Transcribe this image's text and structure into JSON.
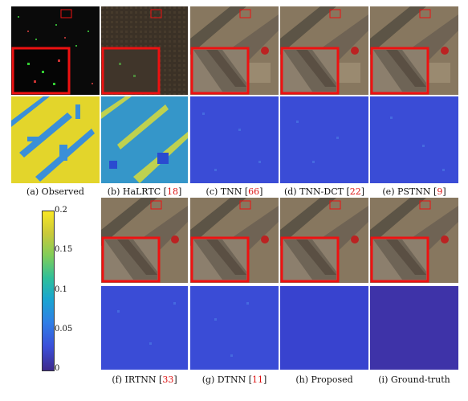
{
  "captions": [
    {
      "label": "(a) Observed",
      "ref": ""
    },
    {
      "label": "(b) HaLRTC",
      "ref": "18"
    },
    {
      "label": "(c) TNN",
      "ref": "66"
    },
    {
      "label": "(d) TNN-DCT",
      "ref": "22"
    },
    {
      "label": "(e) PSTNN",
      "ref": "9"
    },
    {
      "label": "(f) IRTNN",
      "ref": "33"
    },
    {
      "label": "(g) DTNN",
      "ref": "11"
    },
    {
      "label": "(h) Proposed",
      "ref": ""
    },
    {
      "label": "(i) Ground-truth",
      "ref": ""
    }
  ],
  "colorbar": {
    "ticks": [
      "0.2",
      "0.15",
      "0.1",
      "0.05",
      "0"
    ],
    "colors": [
      "#3e2a8c",
      "#f9e724"
    ]
  }
}
